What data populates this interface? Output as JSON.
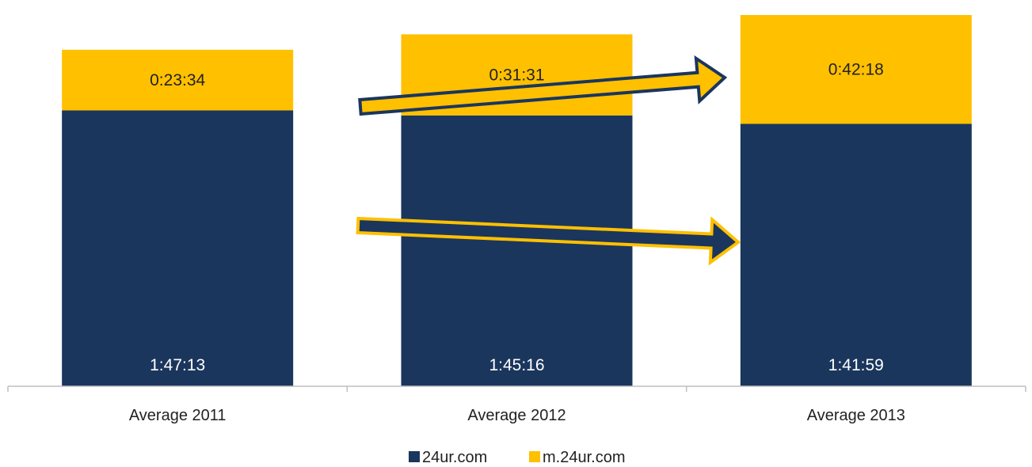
{
  "chart_data": {
    "type": "bar",
    "stacked": true,
    "categories": [
      "Average 2011",
      "Average 2012",
      "Average 2013"
    ],
    "series": [
      {
        "name": "24ur.com",
        "values": [
          6433,
          6316,
          6119
        ],
        "labels": [
          "1:47:13",
          "1:45:16",
          "1:41:59"
        ],
        "color": "#1b365d",
        "label_color": "#ffffff"
      },
      {
        "name": "m.24ur.com",
        "values": [
          1414,
          1891,
          2538
        ],
        "labels": [
          "0:23:34",
          "0:31:31",
          "0:42:18"
        ],
        "color": "#ffc000",
        "label_color": "#222222"
      }
    ],
    "ylim": [
      0,
      8786
    ],
    "title": "",
    "xlabel": "",
    "ylabel": "",
    "grid": false,
    "legend_position": "bottom",
    "annotations": [
      {
        "type": "arrow",
        "from_category": 0,
        "to_category": 2,
        "series": "m.24ur.com",
        "direction": "up",
        "fill": "#ffc000",
        "stroke": "#1b365d"
      },
      {
        "type": "arrow",
        "from_category": 0,
        "to_category": 2,
        "series": "24ur.com",
        "direction": "flat",
        "fill": "#1b365d",
        "stroke": "#ffc000"
      }
    ]
  }
}
